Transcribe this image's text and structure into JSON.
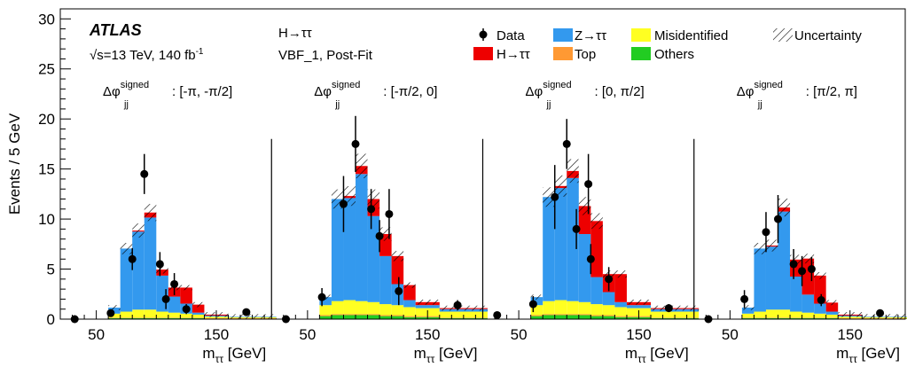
{
  "chart_data": {
    "type": "bar",
    "ylabel": "Events / 5 GeV",
    "xlabel": "m",
    "xlabel_sub": "ττ",
    "xlabel_unit": " [GeV]",
    "ylim": [
      0,
      31
    ],
    "yticks": [
      0,
      5,
      10,
      15,
      20,
      25,
      30
    ],
    "xlim": [
      20,
      196
    ],
    "xticks": [
      50,
      150
    ],
    "bin_edges": [
      60,
      70,
      80,
      90,
      100,
      110,
      120,
      130,
      140,
      160,
      200
    ],
    "labels": {
      "atlas": "ATLAS",
      "energy": "√s=13 TeV, 140 fb",
      "energy_sup": "-1",
      "channel": "H→ττ",
      "region": "VBF_1, Post-Fit"
    },
    "legend": [
      {
        "key": "data",
        "name": "Data",
        "color": "#000000"
      },
      {
        "key": "ztt",
        "name": "Z→ττ",
        "color": "#3399ee"
      },
      {
        "key": "misid",
        "name": "Misidentified",
        "color": "#ffff22"
      },
      {
        "key": "unc",
        "name": "Uncertainty",
        "color": "#000000"
      },
      {
        "key": "htt",
        "name": "H→ττ",
        "color": "#ee0000"
      },
      {
        "key": "top",
        "name": "Top",
        "color": "#ff9933"
      },
      {
        "key": "others",
        "name": "Others",
        "color": "#22cc22"
      }
    ],
    "panels": [
      {
        "label_prefix": "Δφ",
        "label_sup": "signed",
        "label_sub": "jj",
        "label_range": ": [-π, -π/2]",
        "stack": {
          "others": [
            0.1,
            0.1,
            0.1,
            0.1,
            0.1,
            0.1,
            0.1,
            0.1,
            0.05,
            0.05
          ],
          "top": [
            0.05,
            0.05,
            0.05,
            0.05,
            0.05,
            0.05,
            0.05,
            0.05,
            0.05,
            0.05
          ],
          "misid": [
            0.4,
            0.6,
            0.8,
            0.8,
            0.6,
            0.5,
            0.4,
            0.3,
            0.15,
            0.1
          ],
          "ztt": [
            0.6,
            6.3,
            7.8,
            9.2,
            3.6,
            1.6,
            1.0,
            0.2,
            0.1,
            0.05
          ],
          "htt": [
            0.0,
            0.0,
            0.1,
            0.5,
            0.6,
            0.9,
            1.6,
            0.8,
            0.1,
            0.0
          ]
        },
        "data": [
          {
            "x": 32,
            "y": 0.0,
            "err": 0.0
          },
          {
            "x": 62,
            "y": 0.6,
            "err": 0.0
          },
          {
            "x": 80,
            "y": 6.0,
            "err": 1.1
          },
          {
            "x": 90,
            "y": 14.5,
            "err": 2.0
          },
          {
            "x": 103,
            "y": 5.5,
            "err": 1.2
          },
          {
            "x": 108,
            "y": 2.0,
            "err": 1.0
          },
          {
            "x": 115,
            "y": 3.5,
            "err": 1.1
          },
          {
            "x": 125,
            "y": 1.0,
            "err": 0.5
          },
          {
            "x": 175,
            "y": 0.7,
            "err": 0.0
          }
        ]
      },
      {
        "label_prefix": "Δφ",
        "label_sup": "signed",
        "label_sub": "jj",
        "label_range": ": [-π/2, 0]",
        "stack": {
          "others": [
            0.3,
            0.4,
            0.4,
            0.4,
            0.4,
            0.3,
            0.3,
            0.2,
            0.2,
            0.1
          ],
          "top": [
            0.1,
            0.1,
            0.1,
            0.1,
            0.1,
            0.1,
            0.1,
            0.1,
            0.1,
            0.05
          ],
          "misid": [
            1.0,
            1.3,
            1.4,
            1.3,
            1.2,
            1.1,
            1.0,
            0.9,
            0.8,
            0.6
          ],
          "ztt": [
            0.8,
            10.2,
            10.2,
            12.7,
            8.6,
            4.8,
            2.1,
            0.7,
            0.3,
            0.25
          ],
          "htt": [
            0.0,
            0.0,
            0.2,
            0.8,
            1.7,
            2.2,
            2.8,
            1.5,
            0.3,
            0.1
          ]
        },
        "data": [
          {
            "x": 32,
            "y": 0.0,
            "err": 0.0
          },
          {
            "x": 62,
            "y": 2.2,
            "err": 0.9
          },
          {
            "x": 80,
            "y": 11.5,
            "err": 2.8
          },
          {
            "x": 90,
            "y": 17.5,
            "err": 2.8
          },
          {
            "x": 103,
            "y": 11.0,
            "err": 2.0
          },
          {
            "x": 110,
            "y": 8.3,
            "err": 1.6
          },
          {
            "x": 118,
            "y": 10.5,
            "err": 2.5
          },
          {
            "x": 126,
            "y": 2.8,
            "err": 1.4
          },
          {
            "x": 175,
            "y": 1.4,
            "err": 0.5
          }
        ]
      },
      {
        "label_prefix": "Δφ",
        "label_sup": "signed",
        "label_sub": "jj",
        "label_range": ": [0, π/2]",
        "stack": {
          "others": [
            0.3,
            0.4,
            0.4,
            0.4,
            0.4,
            0.3,
            0.3,
            0.2,
            0.2,
            0.1
          ],
          "top": [
            0.1,
            0.1,
            0.1,
            0.1,
            0.1,
            0.1,
            0.1,
            0.1,
            0.1,
            0.05
          ],
          "misid": [
            1.0,
            1.3,
            1.4,
            1.3,
            1.2,
            1.1,
            1.0,
            0.9,
            0.8,
            0.6
          ],
          "ztt": [
            0.8,
            10.4,
            11.2,
            12.3,
            6.8,
            2.7,
            1.3,
            0.5,
            0.3,
            0.25
          ],
          "htt": [
            0.0,
            0.0,
            0.2,
            0.7,
            2.8,
            5.6,
            1.8,
            2.8,
            0.3,
            0.1
          ]
        },
        "data": [
          {
            "x": 32,
            "y": 0.4,
            "err": 0.0
          },
          {
            "x": 62,
            "y": 1.5,
            "err": 0.8
          },
          {
            "x": 80,
            "y": 12.2,
            "err": 3.2
          },
          {
            "x": 90,
            "y": 17.5,
            "err": 2.5
          },
          {
            "x": 98,
            "y": 9.0,
            "err": 2.0
          },
          {
            "x": 108,
            "y": 13.5,
            "err": 3.0
          },
          {
            "x": 110,
            "y": 6.0,
            "err": 1.5
          },
          {
            "x": 125,
            "y": 4.0,
            "err": 1.2
          },
          {
            "x": 175,
            "y": 1.1,
            "err": 0.4
          }
        ]
      },
      {
        "label_prefix": "Δφ",
        "label_sup": "signed",
        "label_sub": "jj",
        "label_range": ": [π/2, π]",
        "stack": {
          "others": [
            0.1,
            0.1,
            0.1,
            0.1,
            0.1,
            0.1,
            0.1,
            0.1,
            0.05,
            0.05
          ],
          "top": [
            0.05,
            0.05,
            0.05,
            0.05,
            0.05,
            0.05,
            0.05,
            0.05,
            0.05,
            0.05
          ],
          "misid": [
            0.4,
            0.6,
            0.8,
            0.8,
            0.6,
            0.5,
            0.4,
            0.3,
            0.15,
            0.1
          ],
          "ztt": [
            0.6,
            6.3,
            6.3,
            9.8,
            3.5,
            1.8,
            1.0,
            0.3,
            0.1,
            0.05
          ],
          "htt": [
            0.0,
            0.0,
            0.1,
            0.4,
            1.7,
            3.6,
            2.8,
            0.9,
            0.1,
            0.0
          ]
        },
        "data": [
          {
            "x": 32,
            "y": 0.0,
            "err": 0.0
          },
          {
            "x": 62,
            "y": 2.0,
            "err": 0.9
          },
          {
            "x": 80,
            "y": 8.7,
            "err": 2.0
          },
          {
            "x": 90,
            "y": 10.0,
            "err": 2.4
          },
          {
            "x": 103,
            "y": 5.5,
            "err": 1.5
          },
          {
            "x": 110,
            "y": 4.8,
            "err": 1.5
          },
          {
            "x": 118,
            "y": 5.0,
            "err": 1.2
          },
          {
            "x": 126,
            "y": 1.9,
            "err": 0.6
          },
          {
            "x": 175,
            "y": 0.6,
            "err": 0.0
          }
        ]
      }
    ]
  }
}
